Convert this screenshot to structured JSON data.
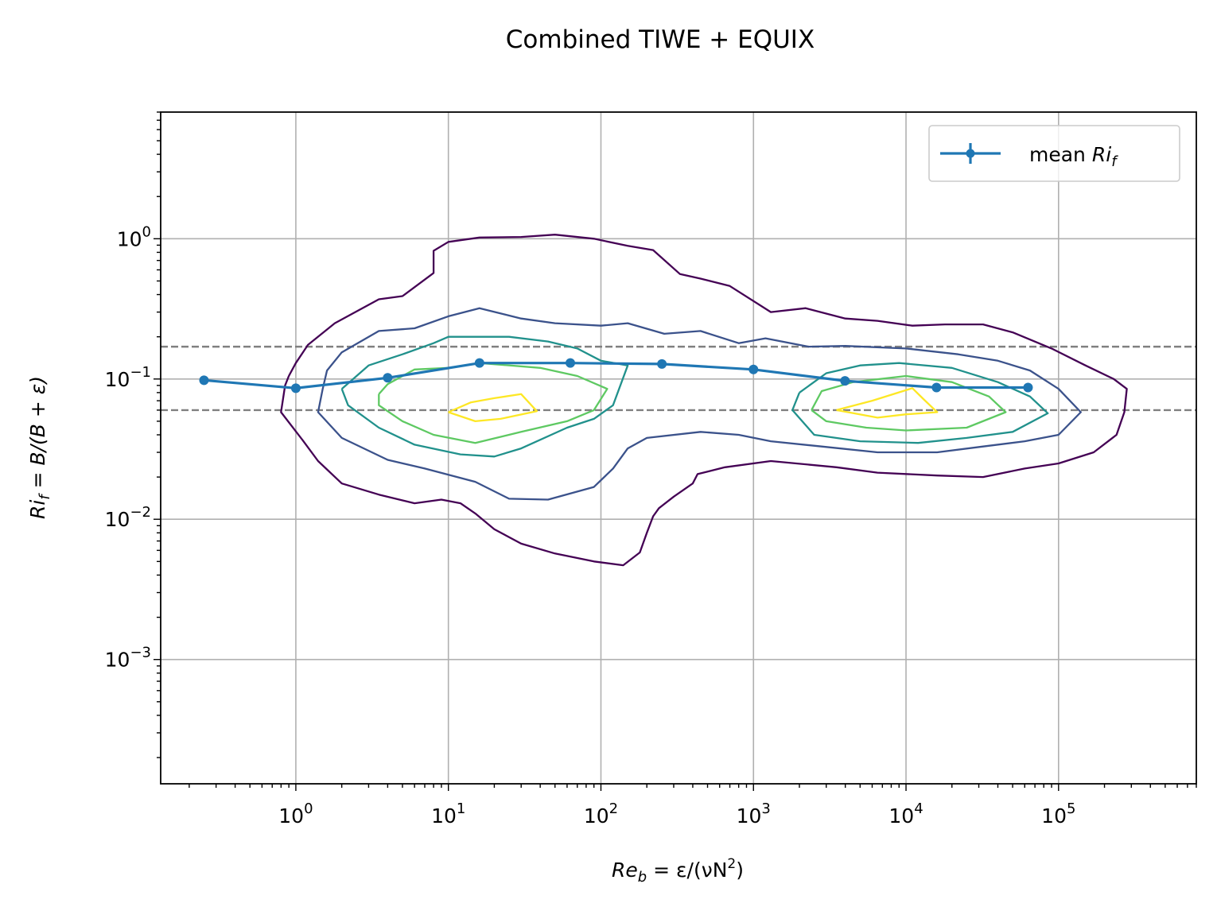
{
  "chart_data": {
    "type": "line",
    "title": "Combined TIWE + EQUIX",
    "xlabel": {
      "prefix": "Re",
      "sub": "b",
      "middle": " = ε/(νN",
      "sup": "2",
      "suffix": ")"
    },
    "ylabel": {
      "prefix": "Ri",
      "sub": "f",
      "suffix": " = B/(B + ε)"
    },
    "xscale": "log",
    "yscale": "log",
    "xlim": [
      0.13,
      800000
    ],
    "ylim": [
      0.00013,
      8
    ],
    "x_ticks": [
      {
        "value": 1,
        "base": "10",
        "exp": "0"
      },
      {
        "value": 10,
        "base": "10",
        "exp": "1"
      },
      {
        "value": 100,
        "base": "10",
        "exp": "2"
      },
      {
        "value": 1000,
        "base": "10",
        "exp": "3"
      },
      {
        "value": 10000,
        "base": "10",
        "exp": "4"
      },
      {
        "value": 100000,
        "base": "10",
        "exp": "5"
      }
    ],
    "y_ticks": [
      {
        "value": 0.001,
        "base": "10",
        "exp": "−3"
      },
      {
        "value": 0.01,
        "base": "10",
        "exp": "−2"
      },
      {
        "value": 0.1,
        "base": "10",
        "exp": "−1"
      },
      {
        "value": 1,
        "base": "10",
        "exp": "0"
      }
    ],
    "grid": true,
    "legend": {
      "placement": "top-right",
      "label_prefix": "mean ",
      "label_math": "Ri",
      "label_sub": "f"
    },
    "reference_lines": [
      0.17,
      0.06
    ],
    "reference_color": "#808080",
    "series": [
      {
        "name": "mean Ri_f",
        "color": "#1f77b4",
        "x": [
          0.25,
          1,
          4,
          16,
          63,
          251,
          1000,
          3981,
          15849,
          63096
        ],
        "y": [
          0.098,
          0.086,
          0.102,
          0.13,
          0.13,
          0.128,
          0.117,
          0.097,
          0.087,
          0.087
        ]
      }
    ],
    "contours": [
      {
        "level": 1,
        "color": "#440154",
        "points": [
          [
            0.9,
            0.105
          ],
          [
            1.0,
            0.13
          ],
          [
            1.2,
            0.175
          ],
          [
            1.8,
            0.25
          ],
          [
            3.5,
            0.37
          ],
          [
            5,
            0.39
          ],
          [
            8,
            0.57
          ],
          [
            8,
            0.82
          ],
          [
            10,
            0.95
          ],
          [
            16,
            1.02
          ],
          [
            30,
            1.03
          ],
          [
            50,
            1.07
          ],
          [
            90,
            1.0
          ],
          [
            150,
            0.89
          ],
          [
            220,
            0.83
          ],
          [
            330,
            0.56
          ],
          [
            450,
            0.52
          ],
          [
            700,
            0.46
          ],
          [
            1300,
            0.3
          ],
          [
            2200,
            0.32
          ],
          [
            4000,
            0.27
          ],
          [
            6500,
            0.26
          ],
          [
            11000,
            0.24
          ],
          [
            18000,
            0.245
          ],
          [
            32000,
            0.245
          ],
          [
            50000,
            0.215
          ],
          [
            90000,
            0.165
          ],
          [
            150000,
            0.125
          ],
          [
            230000,
            0.1
          ],
          [
            280000,
            0.085
          ],
          [
            270000,
            0.058
          ],
          [
            240000,
            0.04
          ],
          [
            170000,
            0.03
          ],
          [
            100000,
            0.025
          ],
          [
            60000,
            0.023
          ],
          [
            32000,
            0.02
          ],
          [
            16000,
            0.0205
          ],
          [
            6500,
            0.0215
          ],
          [
            3500,
            0.0235
          ],
          [
            1300,
            0.026
          ],
          [
            650,
            0.0235
          ],
          [
            430,
            0.021
          ],
          [
            400,
            0.018
          ],
          [
            300,
            0.0145
          ],
          [
            240,
            0.012
          ],
          [
            220,
            0.0105
          ],
          [
            200,
            0.008
          ],
          [
            180,
            0.0058
          ],
          [
            140,
            0.0047
          ],
          [
            90,
            0.005
          ],
          [
            50,
            0.0057
          ],
          [
            30,
            0.0067
          ],
          [
            20,
            0.0085
          ],
          [
            15,
            0.011
          ],
          [
            12,
            0.013
          ],
          [
            9,
            0.0138
          ],
          [
            6,
            0.013
          ],
          [
            3.5,
            0.015
          ],
          [
            2,
            0.018
          ],
          [
            1.4,
            0.026
          ],
          [
            1.1,
            0.037
          ],
          [
            0.8,
            0.058
          ],
          [
            0.85,
            0.09
          ],
          [
            0.9,
            0.105
          ]
        ]
      },
      {
        "level": 2,
        "color": "#3b528b",
        "points": [
          [
            1.5,
            0.085
          ],
          [
            1.6,
            0.115
          ],
          [
            2,
            0.155
          ],
          [
            3.5,
            0.22
          ],
          [
            6,
            0.23
          ],
          [
            10,
            0.28
          ],
          [
            16,
            0.32
          ],
          [
            30,
            0.27
          ],
          [
            50,
            0.25
          ],
          [
            100,
            0.24
          ],
          [
            150,
            0.25
          ],
          [
            260,
            0.21
          ],
          [
            450,
            0.22
          ],
          [
            800,
            0.18
          ],
          [
            1200,
            0.195
          ],
          [
            2300,
            0.17
          ],
          [
            4000,
            0.172
          ],
          [
            10000,
            0.165
          ],
          [
            22000,
            0.15
          ],
          [
            40000,
            0.135
          ],
          [
            65000,
            0.115
          ],
          [
            100000,
            0.085
          ],
          [
            140000,
            0.058
          ],
          [
            100000,
            0.04
          ],
          [
            60000,
            0.036
          ],
          [
            32000,
            0.033
          ],
          [
            16000,
            0.03
          ],
          [
            6500,
            0.03
          ],
          [
            2800,
            0.033
          ],
          [
            1300,
            0.036
          ],
          [
            800,
            0.04
          ],
          [
            450,
            0.042
          ],
          [
            200,
            0.038
          ],
          [
            150,
            0.032
          ],
          [
            120,
            0.023
          ],
          [
            90,
            0.017
          ],
          [
            45,
            0.0138
          ],
          [
            25,
            0.014
          ],
          [
            15,
            0.0185
          ],
          [
            7,
            0.023
          ],
          [
            4,
            0.0265
          ],
          [
            2,
            0.038
          ],
          [
            1.4,
            0.058
          ],
          [
            1.5,
            0.085
          ]
        ]
      },
      {
        "level": 3,
        "color": "#21918c",
        "points": [
          [
            2,
            0.085
          ],
          [
            3,
            0.125
          ],
          [
            5,
            0.15
          ],
          [
            8,
            0.18
          ],
          [
            10,
            0.2
          ],
          [
            25,
            0.2
          ],
          [
            45,
            0.185
          ],
          [
            70,
            0.165
          ],
          [
            100,
            0.135
          ],
          [
            150,
            0.125
          ],
          [
            120,
            0.065
          ],
          [
            90,
            0.052
          ],
          [
            60,
            0.045
          ],
          [
            30,
            0.032
          ],
          [
            20,
            0.028
          ],
          [
            12,
            0.029
          ],
          [
            6,
            0.034
          ],
          [
            3.5,
            0.045
          ],
          [
            2.2,
            0.065
          ],
          [
            2,
            0.085
          ]
        ],
        "points2": [
          [
            2000,
            0.08
          ],
          [
            3000,
            0.11
          ],
          [
            5000,
            0.125
          ],
          [
            9000,
            0.13
          ],
          [
            20000,
            0.12
          ],
          [
            40000,
            0.095
          ],
          [
            65000,
            0.075
          ],
          [
            85000,
            0.057
          ],
          [
            50000,
            0.042
          ],
          [
            25000,
            0.038
          ],
          [
            12000,
            0.035
          ],
          [
            5000,
            0.036
          ],
          [
            2500,
            0.04
          ],
          [
            1800,
            0.06
          ],
          [
            2000,
            0.08
          ]
        ]
      },
      {
        "level": 4,
        "color": "#5ec962",
        "points": [
          [
            3.5,
            0.078
          ],
          [
            4,
            0.092
          ],
          [
            6,
            0.117
          ],
          [
            10,
            0.12
          ],
          [
            16,
            0.13
          ],
          [
            40,
            0.12
          ],
          [
            70,
            0.105
          ],
          [
            110,
            0.085
          ],
          [
            90,
            0.06
          ],
          [
            60,
            0.05
          ],
          [
            30,
            0.042
          ],
          [
            15,
            0.035
          ],
          [
            8,
            0.04
          ],
          [
            5,
            0.05
          ],
          [
            3.5,
            0.065
          ],
          [
            3.5,
            0.078
          ]
        ],
        "points2": [
          [
            2400,
            0.06
          ],
          [
            2800,
            0.082
          ],
          [
            4500,
            0.095
          ],
          [
            10000,
            0.105
          ],
          [
            20000,
            0.095
          ],
          [
            35000,
            0.075
          ],
          [
            45000,
            0.058
          ],
          [
            25000,
            0.045
          ],
          [
            10000,
            0.043
          ],
          [
            5500,
            0.045
          ],
          [
            3000,
            0.05
          ],
          [
            2400,
            0.06
          ]
        ]
      },
      {
        "level": 5,
        "color": "#fde725",
        "points": [
          [
            10,
            0.058
          ],
          [
            14,
            0.068
          ],
          [
            20,
            0.073
          ],
          [
            30,
            0.078
          ],
          [
            38,
            0.059
          ],
          [
            22,
            0.052
          ],
          [
            15,
            0.05
          ],
          [
            10,
            0.058
          ]
        ],
        "points2": [
          [
            3500,
            0.06
          ],
          [
            6000,
            0.07
          ],
          [
            11000,
            0.086
          ],
          [
            13000,
            0.072
          ],
          [
            16000,
            0.058
          ],
          [
            10000,
            0.056
          ],
          [
            6500,
            0.053
          ],
          [
            3500,
            0.06
          ]
        ]
      }
    ]
  }
}
